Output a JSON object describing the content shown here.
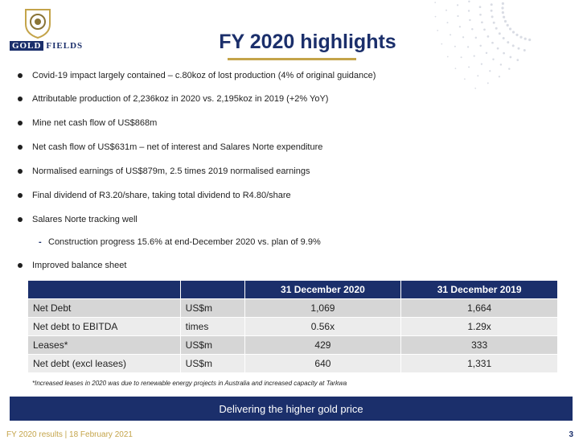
{
  "logo": {
    "word_box": "GOLD",
    "word_rest": "FIELDS"
  },
  "title": "FY 2020 highlights",
  "bullets": [
    "Covid-19 impact largely contained – c.80koz of lost production (4% of original guidance)",
    "Attributable production of 2,236koz in 2020 vs. 2,195koz in 2019 (+2% YoY)",
    "Mine net cash flow of US$868m",
    "Net cash flow of US$631m – net of interest and Salares Norte expenditure",
    "Normalised earnings of US$879m, 2.5 times 2019 normalised earnings",
    "Final dividend of R3.20/share, taking total dividend to R4.80/share",
    "Salares Norte tracking well"
  ],
  "sub_bullet": {
    "dash": "-",
    "text": "Construction progress 15.6% at end-December 2020 vs. plan of 9.9%"
  },
  "last_bullet": "Improved balance sheet",
  "table": {
    "headers": [
      "",
      "",
      "31 December 2020",
      "31 December 2019"
    ],
    "rows": [
      [
        "Net Debt",
        "US$m",
        "1,069",
        "1,664"
      ],
      [
        "Net debt to EBITDA",
        "times",
        "0.56x",
        "1.29x"
      ],
      [
        "Leases*",
        "US$m",
        "429",
        "333"
      ],
      [
        "Net debt (excl leases)",
        "US$m",
        "640",
        "1,331"
      ]
    ]
  },
  "note": "*Increased leases in 2020 was due to renewable energy projects in Australia and increased capacity at Tarkwa",
  "banner": "Delivering the higher gold price",
  "footer": "FY 2020 results | 18 February 2021",
  "page_number": "3",
  "colors": {
    "navy": "#1b2f6b",
    "gold": "#c4a44a"
  }
}
